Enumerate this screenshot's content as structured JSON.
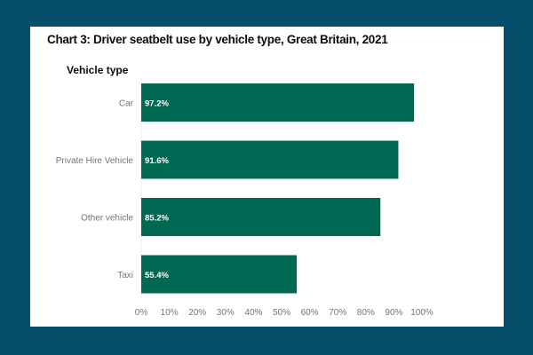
{
  "chart_data": {
    "type": "bar",
    "orientation": "horizontal",
    "title": "Chart 3: Driver seatbelt use by vehicle type, Great Britain, 2021",
    "ylabel": "Vehicle type",
    "xlabel": "",
    "categories": [
      "Car",
      "Private Hire Vehicle",
      "Other vehicle",
      "Taxi"
    ],
    "values": [
      97.2,
      91.6,
      85.2,
      55.4
    ],
    "data_labels": [
      "97.2%",
      "91.6%",
      "85.2%",
      "55.4%"
    ],
    "xlim": [
      0,
      100
    ],
    "xticks": [
      "0%",
      "10%",
      "20%",
      "30%",
      "40%",
      "50%",
      "60%",
      "70%",
      "80%",
      "90%",
      "100%"
    ],
    "grid": false,
    "colors": {
      "bar": "#006853",
      "background": "#054f6d",
      "panel": "#ffffff"
    }
  }
}
